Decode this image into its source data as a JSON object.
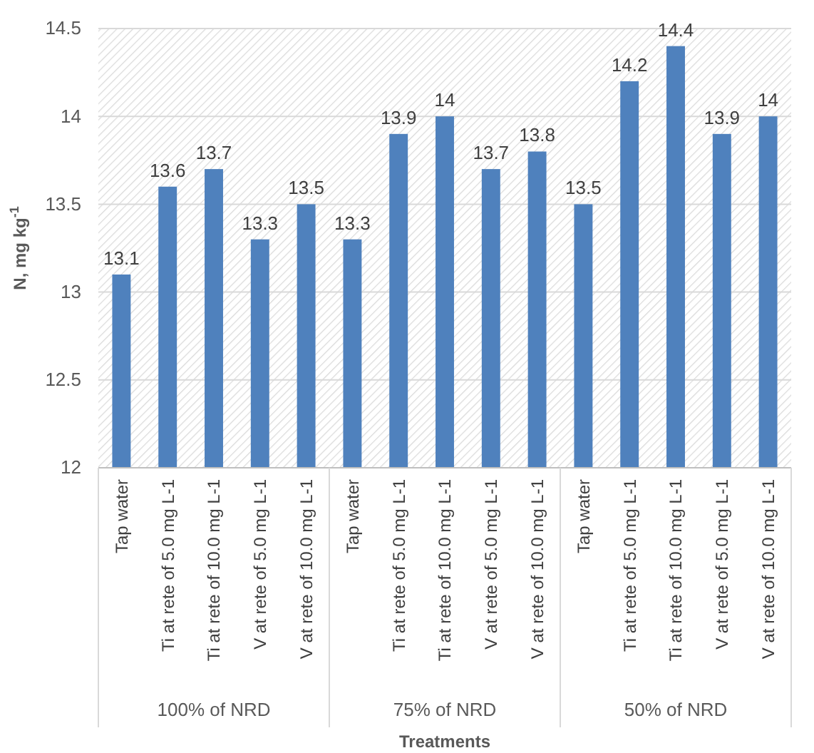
{
  "chart_data": {
    "type": "bar",
    "xlabel": "Treatments",
    "ylabel": "N, mg kg$^{-1}$",
    "categories": [
      "Tap water",
      "Ti  at rete of 5.0 mg L-1",
      "Ti  at rete of 10.0 mg L-1",
      "V at rete of 5.0 mg L-1",
      "V at rete of 10.0 mg L-1",
      "Tap water",
      "Ti  at rete of 5.0 mg L-1",
      "Ti  at rete of 10.0 mg L-1",
      "V at rete of 5.0 mg L-1",
      "V at rete of 10.0 mg L-1",
      "Tap water",
      "Ti  at rete of 5.0 mg L-1",
      "Ti  at rete of 10.0 mg L-1",
      "V at rete of 5.0 mg L-1",
      "V at rete of 10.0 mg L-1"
    ],
    "values": [
      13.1,
      13.6,
      13.7,
      13.3,
      13.5,
      13.3,
      13.9,
      14,
      13.7,
      13.8,
      13.5,
      14.2,
      14.4,
      13.9,
      14
    ],
    "color": "#4f81bd",
    "ylim": [
      12,
      14.5
    ],
    "yticks": [
      12,
      12.5,
      13,
      13.5,
      14,
      14.5
    ],
    "grid": "y",
    "data_labels": true,
    "annotations": [
      "100% of NRD",
      "75% of NRD",
      "50% of NRD"
    ]
  }
}
